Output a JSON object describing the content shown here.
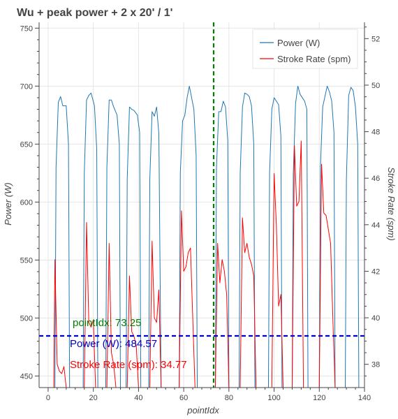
{
  "chart_data": {
    "type": "line",
    "title": "Wu + peak power + 2 x 20' / 1'",
    "xlabel": "pointIdx",
    "ylabel": "Power (W)",
    "y2label": "Stroke Rate (spm)",
    "xlim": [
      -4,
      140
    ],
    "ylim": [
      440,
      755
    ],
    "y2lim": [
      37,
      52.7
    ],
    "x_ticks": [
      "0",
      "20",
      "40",
      "60",
      "80",
      "100",
      "120",
      "140"
    ],
    "y_ticks": [
      "450",
      "500",
      "550",
      "600",
      "650",
      "700",
      "750"
    ],
    "y2_ticks": [
      "38",
      "40",
      "42",
      "44",
      "46",
      "48",
      "50",
      "52"
    ],
    "x_tick_values": [
      0,
      20,
      40,
      60,
      80,
      100,
      120,
      140
    ],
    "y_tick_values": [
      450,
      500,
      550,
      600,
      650,
      700,
      750
    ],
    "y2_tick_values": [
      38,
      40,
      42,
      44,
      46,
      48,
      50,
      52
    ],
    "legend": {
      "position": "top-right"
    },
    "grid": true,
    "series": [
      {
        "name": "Power (W)",
        "axis": "left",
        "color": "#1f77b4",
        "points": [
          [
            3,
            440
          ],
          [
            3.5,
            630
          ],
          [
            4.5,
            686
          ],
          [
            5.5,
            691
          ],
          [
            6.5,
            683
          ],
          [
            8,
            683
          ],
          [
            9,
            650
          ],
          [
            9.5,
            440
          ],
          [
            15.5,
            440
          ],
          [
            16,
            625
          ],
          [
            17,
            688
          ],
          [
            18,
            692
          ],
          [
            19,
            694
          ],
          [
            20.5,
            683
          ],
          [
            21.5,
            646
          ],
          [
            22,
            440
          ],
          [
            25.5,
            440
          ],
          [
            26,
            630
          ],
          [
            27,
            688
          ],
          [
            28,
            688
          ],
          [
            29,
            682
          ],
          [
            30.5,
            675
          ],
          [
            31.5,
            650
          ],
          [
            32,
            440
          ],
          [
            34.5,
            440
          ],
          [
            35,
            620
          ],
          [
            36,
            682
          ],
          [
            37,
            680
          ],
          [
            38,
            679
          ],
          [
            39.5,
            675
          ],
          [
            40.5,
            660
          ],
          [
            41,
            440
          ],
          [
            44.5,
            440
          ],
          [
            45,
            620
          ],
          [
            46,
            678
          ],
          [
            47,
            674
          ],
          [
            48,
            682
          ],
          [
            49,
            659
          ],
          [
            50,
            440
          ],
          [
            58,
            440
          ],
          [
            58.5,
            625
          ],
          [
            59.5,
            670
          ],
          [
            60.5,
            675
          ],
          [
            61.5,
            690
          ],
          [
            62.5,
            700
          ],
          [
            63.5,
            690
          ],
          [
            64.5,
            680
          ],
          [
            65.5,
            640
          ],
          [
            66,
            440
          ],
          [
            74,
            440
          ],
          [
            74.5,
            630
          ],
          [
            75.5,
            678
          ],
          [
            76.5,
            678
          ],
          [
            77.5,
            687
          ],
          [
            78.5,
            682
          ],
          [
            79.5,
            653
          ],
          [
            80,
            440
          ],
          [
            84.5,
            440
          ],
          [
            85,
            625
          ],
          [
            86,
            682
          ],
          [
            87,
            694
          ],
          [
            88,
            693
          ],
          [
            89,
            691
          ],
          [
            90,
            683
          ],
          [
            91,
            650
          ],
          [
            91.5,
            440
          ],
          [
            97.5,
            440
          ],
          [
            98,
            625
          ],
          [
            99,
            680
          ],
          [
            100,
            690
          ],
          [
            101,
            687
          ],
          [
            102,
            684
          ],
          [
            103,
            657
          ],
          [
            103.5,
            440
          ],
          [
            108,
            440
          ],
          [
            108.5,
            625
          ],
          [
            109.5,
            685
          ],
          [
            110.5,
            700
          ],
          [
            111.5,
            693
          ],
          [
            112.5,
            690
          ],
          [
            113.5,
            687
          ],
          [
            114.5,
            680
          ],
          [
            115,
            440
          ],
          [
            120,
            440
          ],
          [
            120.5,
            630
          ],
          [
            121.5,
            682
          ],
          [
            122.5,
            691
          ],
          [
            123.5,
            700
          ],
          [
            124.5,
            695
          ],
          [
            125.5,
            687
          ],
          [
            126.5,
            660
          ],
          [
            127,
            440
          ],
          [
            131.5,
            440
          ],
          [
            132,
            620
          ],
          [
            133,
            692
          ],
          [
            134,
            699
          ],
          [
            135,
            696
          ],
          [
            136,
            682
          ],
          [
            137,
            650
          ],
          [
            137.5,
            440
          ]
        ]
      },
      {
        "name": "Stroke Rate (spm)",
        "axis": "right",
        "color": "#ff0000",
        "points": [
          [
            2.5,
            37
          ],
          [
            3,
            42.5
          ],
          [
            4,
            38
          ],
          [
            5,
            37.7
          ],
          [
            6,
            37.6
          ],
          [
            7,
            37.9
          ],
          [
            8,
            37
          ],
          [
            16,
            37
          ],
          [
            17,
            44.1
          ],
          [
            18,
            39.8
          ],
          [
            19,
            39.6
          ],
          [
            20,
            39.9
          ],
          [
            21,
            37
          ],
          [
            26,
            37
          ],
          [
            27,
            43.2
          ],
          [
            28,
            38.5
          ],
          [
            29,
            38
          ],
          [
            30,
            37
          ],
          [
            35,
            37
          ],
          [
            36,
            41.8
          ],
          [
            37,
            39.4
          ],
          [
            38,
            39.2
          ],
          [
            39,
            38.8
          ],
          [
            40,
            37
          ],
          [
            45,
            37
          ],
          [
            46,
            43.3
          ],
          [
            47,
            40
          ],
          [
            48,
            39.8
          ],
          [
            49,
            41.2
          ],
          [
            50,
            37
          ],
          [
            58,
            37
          ],
          [
            59,
            44.6
          ],
          [
            60,
            42
          ],
          [
            61,
            42.2
          ],
          [
            62,
            42.8
          ],
          [
            63,
            43
          ],
          [
            64,
            40
          ],
          [
            65,
            37
          ],
          [
            74,
            37
          ],
          [
            75,
            43.2
          ],
          [
            76,
            41.5
          ],
          [
            77,
            42.5
          ],
          [
            78,
            42
          ],
          [
            79,
            41
          ],
          [
            80,
            37
          ],
          [
            85,
            37
          ],
          [
            86,
            44.3
          ],
          [
            87,
            42.8
          ],
          [
            88,
            43.2
          ],
          [
            89,
            42.6
          ],
          [
            90,
            42.3
          ],
          [
            91,
            41.8
          ],
          [
            92,
            37
          ],
          [
            99,
            37
          ],
          [
            100,
            46.2
          ],
          [
            101,
            44
          ],
          [
            102,
            40.5
          ],
          [
            103,
            41
          ],
          [
            104,
            37
          ],
          [
            108,
            37
          ],
          [
            109,
            47.4
          ],
          [
            110,
            44.8
          ],
          [
            111,
            45
          ],
          [
            112,
            47.6
          ],
          [
            113,
            37
          ],
          [
            120,
            37
          ],
          [
            121,
            46.6
          ],
          [
            122,
            44.5
          ],
          [
            123,
            44.4
          ],
          [
            124,
            43.8
          ],
          [
            125,
            43.2
          ],
          [
            126,
            40
          ],
          [
            127,
            37
          ]
        ]
      }
    ],
    "crosshair": {
      "x": 73.25,
      "y": 484.57,
      "stroke_rate": 34.77
    },
    "annotations": {
      "x_text": "pointIdx:  73.25",
      "y_text": "Power (W): 484.57",
      "y2_text": "Stroke Rate (spm):  34.77"
    },
    "colors": {
      "power": "#1f77b4",
      "stroke": "#ff0000",
      "vline": "#008000",
      "hline": "#0000cc",
      "grid": "#e5e5e5",
      "axis": "#444444"
    }
  }
}
